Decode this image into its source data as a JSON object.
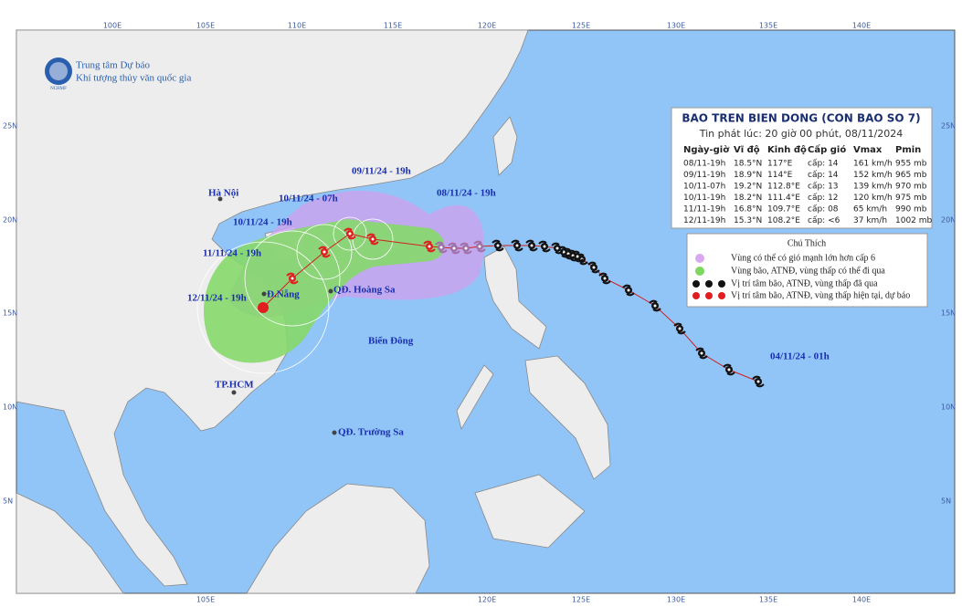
{
  "header": {
    "agency_line1": "Trung tâm Dự báo",
    "agency_line2": "Khí tượng thủy văn quốc gia",
    "logo_text": "NCHMF"
  },
  "grid": {
    "lon_top": [
      "100E",
      "105E",
      "110E",
      "115E",
      "120E",
      "125E",
      "130E",
      "135E",
      "140E"
    ],
    "lon_bottom": [
      "105E",
      "120E",
      "125E",
      "130E",
      "135E",
      "140E"
    ],
    "lat_left": [
      "25N",
      "20N",
      "15N",
      "10N",
      "5N"
    ],
    "lat_right": [
      "25N",
      "20N",
      "15N",
      "10N",
      "5N"
    ]
  },
  "info": {
    "title": "BAO TREN BIEN DONG (CON BAO SO 7)",
    "subtitle": "Tin phát lúc: 20 giờ 00 phút, 08/11/2024",
    "columns": [
      "Ngày-giờ",
      "Vĩ độ",
      "Kinh độ",
      "Cấp gió",
      "Vmax",
      "Pmin"
    ],
    "rows": [
      [
        "08/11-19h",
        "18.5°N",
        "117°E",
        "cấp: 14",
        "161 km/h",
        "955 mb"
      ],
      [
        "09/11-19h",
        "18.9°N",
        "114°E",
        "cấp: 14",
        "152 km/h",
        "965 mb"
      ],
      [
        "10/11-07h",
        "19.2°N",
        "112.8°E",
        "cấp: 13",
        "139 km/h",
        "970 mb"
      ],
      [
        "10/11-19h",
        "18.2°N",
        "111.4°E",
        "cấp: 12",
        "120 km/h",
        "975 mb"
      ],
      [
        "11/11-19h",
        "16.8°N",
        "109.7°E",
        "cấp: 08",
        "65 km/h",
        "990 mb"
      ],
      [
        "12/11-19h",
        "15.3°N",
        "108.2°E",
        "cấp: <6",
        "37 km/h",
        "1002 mb"
      ]
    ]
  },
  "legend": {
    "title": "Chú Thích",
    "items": [
      "Vùng có thể có gió mạnh lớn hơn cấp 6",
      "Vùng bão, ATNĐ, vùng thấp có thể đi qua",
      "Vị trí tâm bão, ATNĐ, vùng thấp đã qua",
      "Vị trí tâm bão, ATNĐ, vùng thấp hiện tại, dự báo"
    ]
  },
  "places": [
    "Hà Nội",
    "Đ.Nẵng",
    "QĐ. Hoàng Sa",
    "TP.HCM",
    "QĐ. Trường Sa",
    "Biển Đông"
  ],
  "track_labels": [
    "09/11/24 - 19h",
    "08/11/24 - 19h",
    "10/11/24 - 07h",
    "10/11/24 - 19h",
    "11/11/24 - 19h",
    "12/11/24 - 19h",
    "04/11/24 - 01h"
  ]
}
